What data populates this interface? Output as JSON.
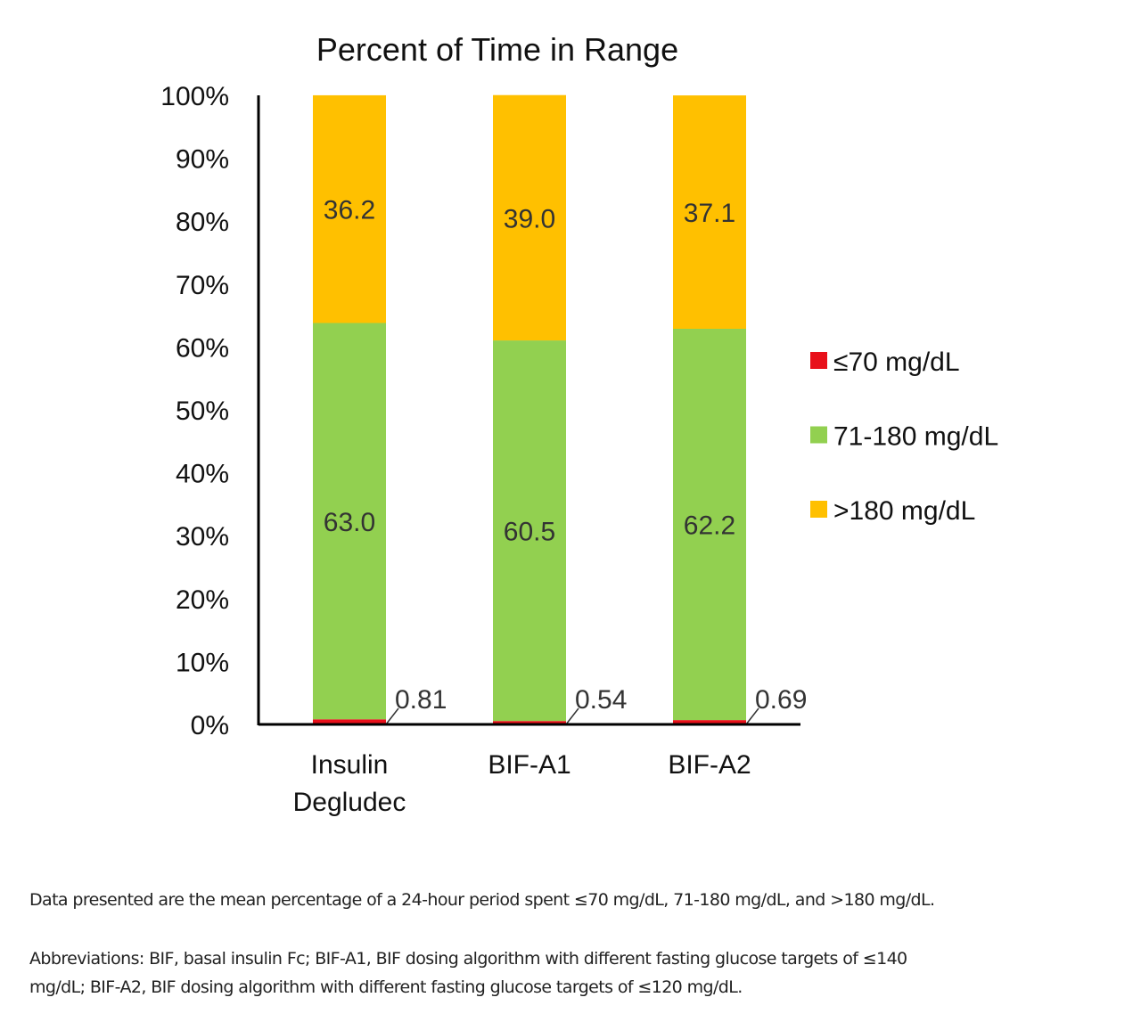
{
  "chart_data": {
    "type": "bar",
    "stacked": true,
    "title": "Percent of Time in Range",
    "xlabel": "",
    "ylabel": "",
    "ylim": [
      0,
      100
    ],
    "yticks": [
      "0%",
      "10%",
      "20%",
      "30%",
      "40%",
      "50%",
      "60%",
      "70%",
      "80%",
      "90%",
      "100%"
    ],
    "grid": false,
    "legend_position": "right",
    "categories": [
      [
        "Insulin",
        "Degludec"
      ],
      [
        "BIF-A1"
      ],
      [
        "BIF-A2"
      ]
    ],
    "series": [
      {
        "name": "≤70 mg/dL",
        "color": "#e8101a",
        "values": [
          0.81,
          0.54,
          0.69
        ],
        "labels": [
          "0.81",
          "0.54",
          "0.69"
        ]
      },
      {
        "name": "71-180 mg/dL",
        "color": "#92d050",
        "values": [
          63.0,
          60.5,
          62.2
        ],
        "labels": [
          "63.0",
          "60.5",
          "62.2"
        ]
      },
      {
        "name": ">180 mg/dL",
        "color": "#ffc000",
        "values": [
          36.2,
          39.0,
          37.1
        ],
        "labels": [
          "36.2",
          "39.0",
          "37.1"
        ]
      }
    ]
  },
  "notes": {
    "line1": "Data presented are the mean percentage of a 24-hour period spent ≤70 mg/dL, 71-180 mg/dL, and >180 mg/dL.",
    "line2": "Abbreviations: BIF, basal insulin Fc; BIF-A1, BIF dosing algorithm with different fasting glucose targets of ≤140",
    "line3": "mg/dL; BIF-A2, BIF dosing algorithm with different fasting glucose targets of ≤120 mg/dL."
  }
}
